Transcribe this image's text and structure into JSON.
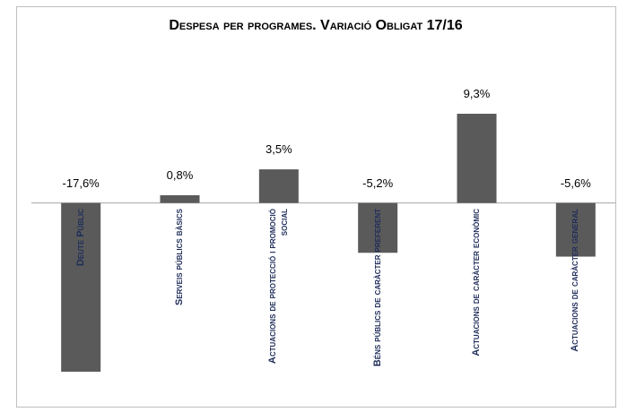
{
  "chart_data": {
    "type": "bar",
    "title": "Despesa per programes. Variació Obligat 17/16",
    "categories": [
      "Deute Públic",
      "Serveis públics bàsics",
      "Actuacions de protecció i promoció social",
      "Béns públics de caràcter preferent",
      "Actuacions de caràcter econòmic",
      "Actuacions de caràcter general"
    ],
    "values": [
      -17.6,
      0.8,
      3.5,
      -5.2,
      9.3,
      -5.6
    ],
    "value_labels": [
      "-17,6%",
      "0,8%",
      "3,5%",
      "-5,2%",
      "9,3%",
      "-5,6%"
    ],
    "color": "#5a5a5a"
  }
}
